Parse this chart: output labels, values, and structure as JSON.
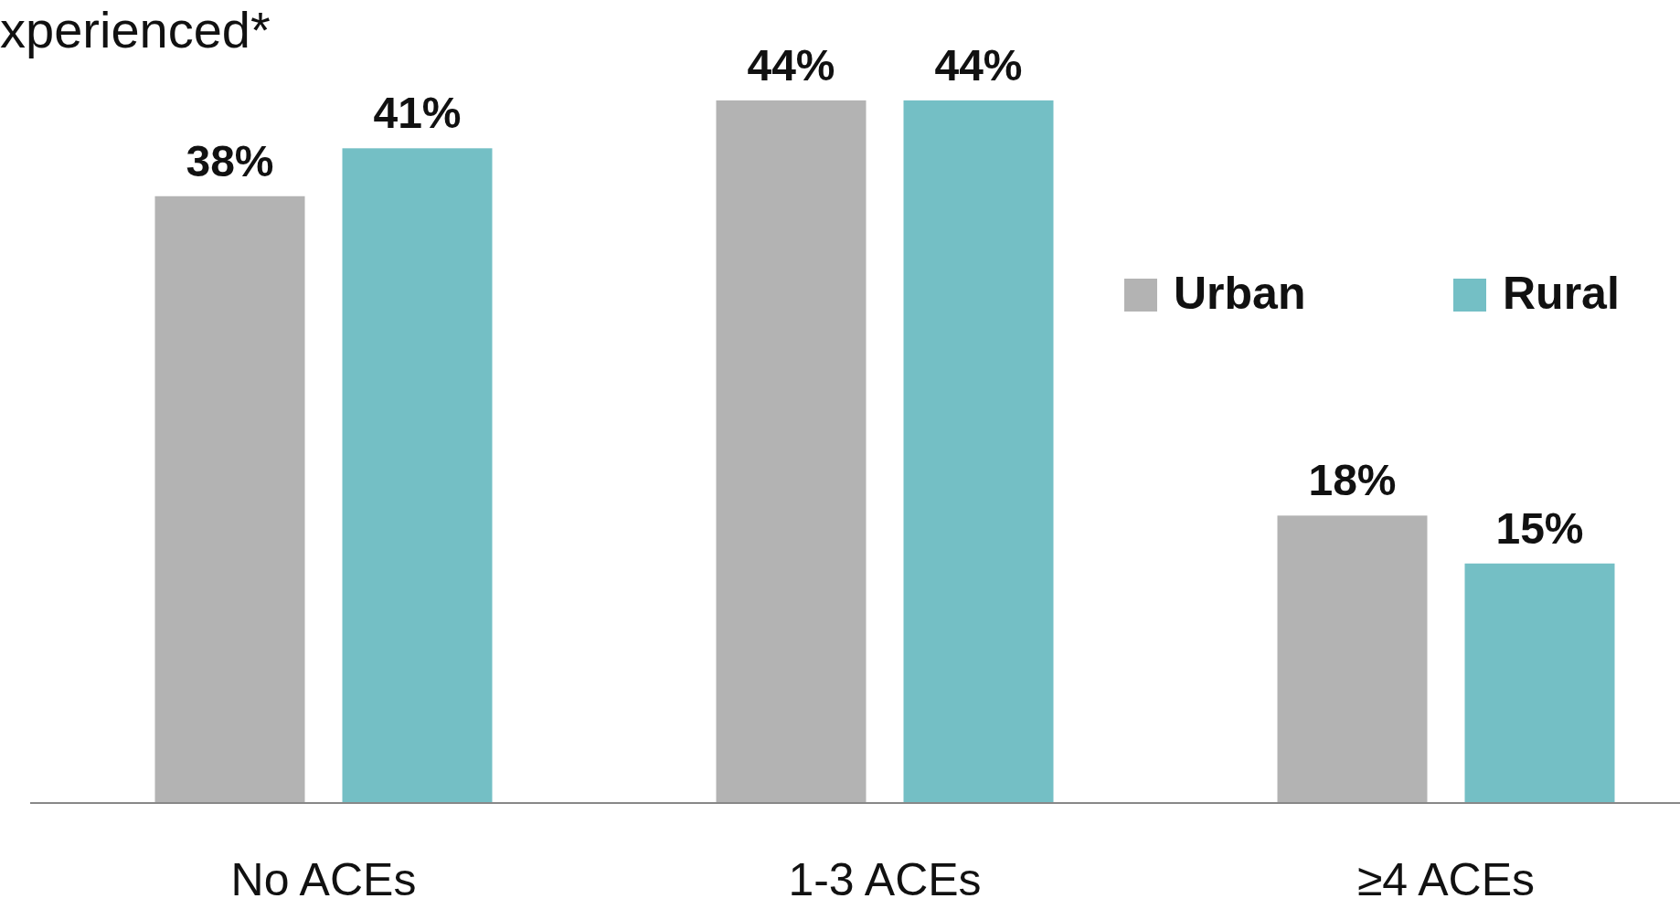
{
  "chart_data": {
    "type": "bar",
    "title": "xperienced*",
    "categories": [
      "No ACEs",
      "1-3 ACEs",
      "≥4 ACEs"
    ],
    "series": [
      {
        "name": "Urban",
        "color": "#b3b3b3",
        "values": [
          38,
          44,
          18
        ],
        "value_labels": [
          "38%",
          "44%",
          "18%"
        ]
      },
      {
        "name": "Rural",
        "color": "#74bfc5",
        "values": [
          41,
          44,
          15
        ],
        "value_labels": [
          "41%",
          "44%",
          "15%"
        ]
      }
    ],
    "ylim": [
      0,
      50
    ],
    "legend": "right"
  }
}
